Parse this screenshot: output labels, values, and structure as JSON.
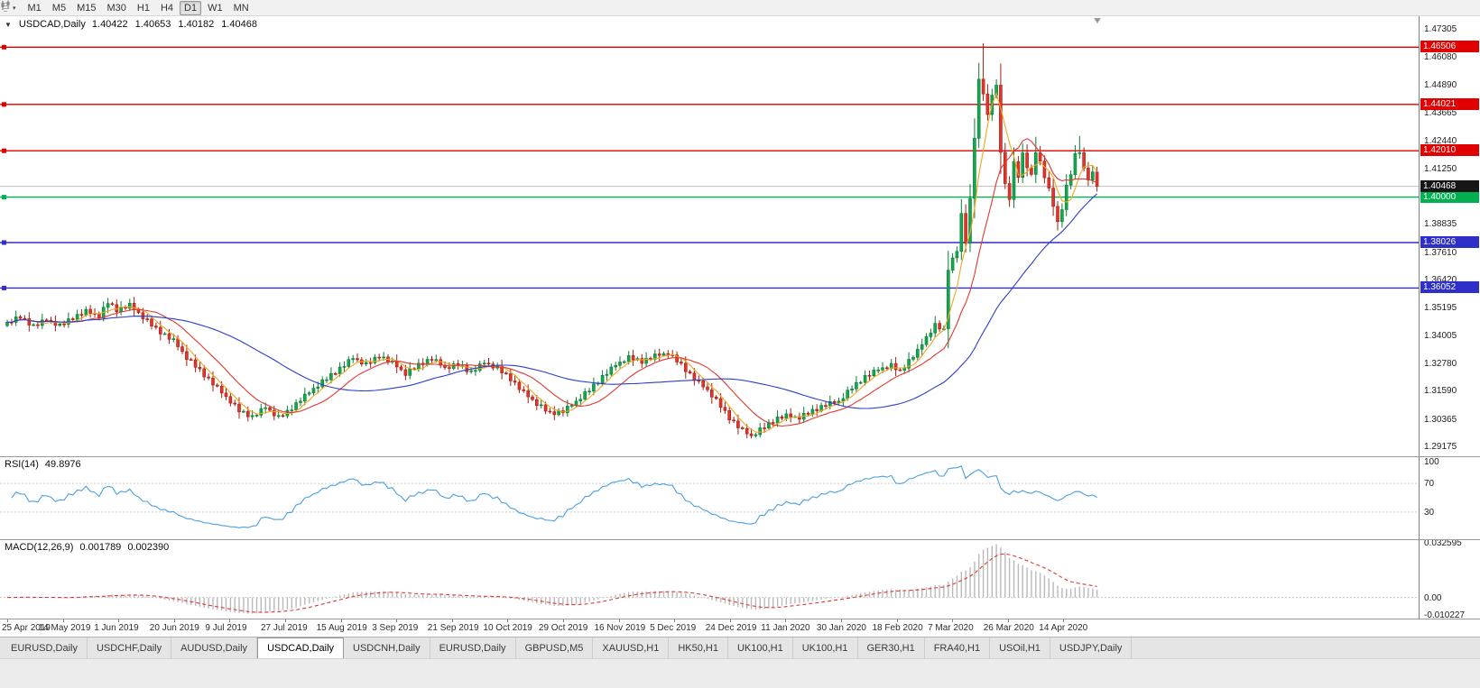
{
  "icons": {
    "toolbar_caret": "▾",
    "symbol_caret": "▼"
  },
  "toolbar": {
    "timeframes": [
      "M1",
      "M5",
      "M15",
      "M30",
      "H1",
      "H4",
      "D1",
      "W1",
      "MN"
    ],
    "active_timeframe": "D1"
  },
  "chart_data": {
    "type": "candlestick",
    "symbol": "USDCAD",
    "period": "Daily",
    "quote": {
      "symbol": "USDCAD,Daily",
      "open": "1.40422",
      "high": "1.40653",
      "low": "1.40182",
      "close": "1.40468"
    },
    "y_min": 1.2875,
    "y_max": 1.4785,
    "y_ticks": [
      "1.47305",
      "1.46080",
      "1.44890",
      "1.43665",
      "1.42440",
      "1.41250",
      "1.38835",
      "1.37610",
      "1.36420",
      "1.35195",
      "1.34005",
      "1.32780",
      "1.31590",
      "1.30365",
      "1.29175"
    ],
    "x_labels": [
      "25 Apr 2019",
      "14 May 2019",
      "1 Jun 2019",
      "20 Jun 2019",
      "9 Jul 2019",
      "27 Jul 2019",
      "15 Aug 2019",
      "3 Sep 2019",
      "21 Sep 2019",
      "10 Oct 2019",
      "29 Oct 2019",
      "16 Nov 2019",
      "5 Dec 2019",
      "24 Dec 2019",
      "11 Jan 2020",
      "30 Jan 2020",
      "18 Feb 2020",
      "7 Mar 2020",
      "26 Mar 2020",
      "14 Apr 2020"
    ],
    "levels": [
      {
        "label": "1.46506",
        "price": 1.46506,
        "color": "#e10000",
        "kind": "resistance"
      },
      {
        "label": "1.44021",
        "price": 1.44021,
        "color": "#e10000",
        "kind": "resistance"
      },
      {
        "label": "1.42010",
        "price": 1.4201,
        "color": "#e10000",
        "kind": "resistance"
      },
      {
        "label": "1.40000",
        "price": 1.4,
        "color": "#00b050",
        "kind": "support"
      },
      {
        "label": "1.38026",
        "price": 1.38026,
        "color": "#2e2ec8",
        "kind": "support"
      },
      {
        "label": "1.36052",
        "price": 1.36052,
        "color": "#2e2ec8",
        "kind": "support"
      }
    ],
    "current_price": {
      "label": "1.40468",
      "price": 1.40468,
      "color": "#161616"
    },
    "candle_count": 250,
    "up_color": "#14a84e",
    "up_stroke": "#0a7c36",
    "down_color": "#e3352b",
    "down_stroke": "#a51d12",
    "noise_amp": 0.0013,
    "noise": [
      0.15,
      -0.5,
      0.75,
      -0.35,
      0.5,
      -0.75,
      0.3,
      -0.6,
      0.55,
      -0.2
    ],
    "last_close": 1.40468,
    "price_anchors": [
      [
        0,
        1.3455
      ],
      [
        3,
        1.3478
      ],
      [
        6,
        1.3442
      ],
      [
        9,
        1.3468
      ],
      [
        12,
        1.344
      ],
      [
        15,
        1.3478
      ],
      [
        18,
        1.3506
      ],
      [
        21,
        1.3482
      ],
      [
        23,
        1.3542
      ],
      [
        25,
        1.3512
      ],
      [
        28,
        1.3532
      ],
      [
        31,
        1.3478
      ],
      [
        34,
        1.3428
      ],
      [
        38,
        1.3378
      ],
      [
        41,
        1.3302
      ],
      [
        44,
        1.3248
      ],
      [
        47,
        1.3192
      ],
      [
        50,
        1.3132
      ],
      [
        53,
        1.3072
      ],
      [
        56,
        1.3048
      ],
      [
        59,
        1.3088
      ],
      [
        62,
        1.3042
      ],
      [
        64,
        1.3068
      ],
      [
        67,
        1.3122
      ],
      [
        70,
        1.3168
      ],
      [
        73,
        1.3212
      ],
      [
        76,
        1.3258
      ],
      [
        79,
        1.3302
      ],
      [
        82,
        1.3272
      ],
      [
        85,
        1.3312
      ],
      [
        88,
        1.3282
      ],
      [
        91,
        1.3232
      ],
      [
        94,
        1.3272
      ],
      [
        97,
        1.3302
      ],
      [
        100,
        1.3258
      ],
      [
        103,
        1.3272
      ],
      [
        106,
        1.3242
      ],
      [
        109,
        1.3282
      ],
      [
        112,
        1.3256
      ],
      [
        115,
        1.3212
      ],
      [
        118,
        1.3152
      ],
      [
        121,
        1.3102
      ],
      [
        124,
        1.3062
      ],
      [
        127,
        1.3072
      ],
      [
        130,
        1.3112
      ],
      [
        133,
        1.3162
      ],
      [
        136,
        1.3222
      ],
      [
        139,
        1.3272
      ],
      [
        142,
        1.3302
      ],
      [
        145,
        1.3288
      ],
      [
        148,
        1.3312
      ],
      [
        151,
        1.3322
      ],
      [
        154,
        1.3272
      ],
      [
        157,
        1.3212
      ],
      [
        160,
        1.3162
      ],
      [
        163,
        1.3092
      ],
      [
        165,
        1.3042
      ],
      [
        168,
        1.2988
      ],
      [
        170,
        1.2962
      ],
      [
        173,
        1.3002
      ],
      [
        176,
        1.3042
      ],
      [
        178,
        1.3052
      ],
      [
        181,
        1.3042
      ],
      [
        184,
        1.3072
      ],
      [
        187,
        1.3102
      ],
      [
        190,
        1.3112
      ],
      [
        193,
        1.3172
      ],
      [
        196,
        1.3222
      ],
      [
        199,
        1.3252
      ],
      [
        202,
        1.3268
      ],
      [
        204,
        1.3242
      ],
      [
        206,
        1.3292
      ],
      [
        208,
        1.3332
      ],
      [
        210,
        1.3392
      ],
      [
        212,
        1.3442
      ],
      [
        214,
        1.3422
      ],
      [
        215,
        1.3692
      ],
      [
        216,
        1.3732
      ],
      [
        217,
        1.3772
      ],
      [
        218,
        1.3922
      ],
      [
        219,
        1.3802
      ],
      [
        220,
        1.3992
      ],
      [
        221,
        1.4262
      ],
      [
        222,
        1.4502
      ],
      [
        223,
        1.4452
      ],
      [
        224,
        1.4352
      ],
      [
        225,
        1.4452
      ],
      [
        226,
        1.4482
      ],
      [
        227,
        1.4202
      ],
      [
        228,
        1.4052
      ],
      [
        229,
        1.3992
      ],
      [
        230,
        1.4152
      ],
      [
        231,
        1.4092
      ],
      [
        232,
        1.4182
      ],
      [
        233,
        1.4132
      ],
      [
        234,
        1.4092
      ],
      [
        235,
        1.4202
      ],
      [
        236,
        1.4152
      ],
      [
        237,
        1.4092
      ],
      [
        238,
        1.4032
      ],
      [
        239,
        1.3962
      ],
      [
        240,
        1.3892
      ],
      [
        241,
        1.3952
      ],
      [
        242,
        1.4042
      ],
      [
        243,
        1.4102
      ],
      [
        244,
        1.4182
      ],
      [
        245,
        1.4202
      ],
      [
        246,
        1.4122
      ],
      [
        247,
        1.4082
      ],
      [
        248,
        1.4102
      ],
      [
        249,
        1.4047
      ]
    ],
    "extremes": [
      {
        "i": 170,
        "low": 1.2952
      },
      {
        "i": 223,
        "high": 1.4668
      },
      {
        "i": 235,
        "high": 1.4262
      },
      {
        "i": 240,
        "low": 1.3855
      },
      {
        "i": 245,
        "high": 1.4265
      }
    ],
    "ma": {
      "fast": 5,
      "mid": 13,
      "slow": 40,
      "fast_color": "#efa720",
      "mid_color": "#e0392f",
      "slow_color": "#2b3fc9"
    },
    "indicators": {
      "rsi": {
        "title": "RSI(14)",
        "value": "49.8976",
        "period": 14,
        "color": "#4aa0e0",
        "levels": [
          70,
          30
        ],
        "ticks": [
          [
            "100",
            100
          ],
          [
            "70",
            70
          ],
          [
            "30",
            30
          ]
        ]
      },
      "macd": {
        "title": "MACD(12,26,9)",
        "value_main": "0.001789",
        "value_signal": "0.002390",
        "fast": 12,
        "slow": 26,
        "signal": 9,
        "hist_color": "#b9b9b9",
        "signal_color": "#e0392f",
        "ticks": [
          [
            "0.032595",
            0.032595
          ],
          [
            "0.00",
            0
          ],
          [
            "-0.010227",
            -0.010227
          ]
        ],
        "range": {
          "max": 0.0345,
          "min": -0.0125
        }
      }
    }
  },
  "tabs": {
    "items": [
      "EURUSD,Daily",
      "USDCHF,Daily",
      "AUDUSD,Daily",
      "USDCAD,Daily",
      "USDCNH,Daily",
      "EURUSD,Daily",
      "GBPUSD,M5",
      "XAUUSD,H1",
      "HK50,H1",
      "UK100,H1",
      "UK100,H1",
      "GER30,H1",
      "FRA40,H1",
      "USOil,H1",
      "USDJPY,Daily"
    ],
    "active_index": 3
  }
}
